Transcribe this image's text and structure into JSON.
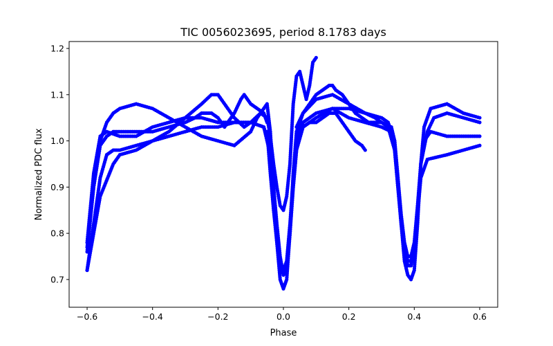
{
  "chart_data": {
    "type": "scatter",
    "title": "TIC 0056023695, period 8.1783 days",
    "xlabel": "Phase",
    "ylabel": "Normalized PDC flux",
    "xlim": [
      -0.655,
      0.655
    ],
    "ylim": [
      0.64,
      1.215
    ],
    "xticks": [
      -0.6,
      -0.4,
      -0.2,
      0.0,
      0.2,
      0.4,
      0.6
    ],
    "xtick_labels": [
      "−0.6",
      "−0.4",
      "−0.2",
      "0.0",
      "0.2",
      "0.4",
      "0.6"
    ],
    "yticks": [
      0.7,
      0.8,
      0.9,
      1.0,
      1.1,
      1.2
    ],
    "ytick_labels": [
      "0.7",
      "0.8",
      "0.9",
      "1.0",
      "1.1",
      "1.2"
    ],
    "grid": false,
    "marker_color": "#0000ff",
    "series": [
      {
        "x": [
          -0.6,
          -0.58,
          -0.56,
          -0.54,
          -0.5,
          -0.45,
          -0.4,
          -0.35,
          -0.3,
          -0.25,
          -0.2,
          -0.15,
          -0.1,
          -0.06,
          -0.04,
          -0.03,
          -0.02,
          -0.01,
          0.0,
          0.01,
          0.02,
          0.03,
          0.04,
          0.06,
          0.1,
          0.15,
          0.2,
          0.25,
          0.3,
          0.33,
          0.34,
          0.35,
          0.36,
          0.37,
          0.38,
          0.39,
          0.4,
          0.41,
          0.42,
          0.43,
          0.45,
          0.5,
          0.55,
          0.6
        ],
        "y": [
          0.78,
          0.93,
          1.01,
          1.02,
          1.01,
          1.01,
          1.03,
          1.04,
          1.05,
          1.05,
          1.04,
          1.04,
          1.04,
          1.03,
          0.98,
          0.9,
          0.82,
          0.75,
          0.71,
          0.72,
          0.8,
          0.9,
          0.98,
          1.03,
          1.05,
          1.07,
          1.05,
          1.04,
          1.03,
          1.02,
          0.98,
          0.9,
          0.82,
          0.76,
          0.73,
          0.73,
          0.77,
          0.85,
          0.95,
          1.0,
          1.02,
          1.01,
          1.01,
          1.01
        ]
      },
      {
        "x": [
          -0.6,
          -0.58,
          -0.56,
          -0.54,
          -0.52,
          -0.5,
          -0.45,
          -0.4,
          -0.35,
          -0.3,
          -0.25,
          -0.2,
          -0.15,
          -0.1,
          -0.08,
          -0.06,
          -0.05,
          -0.04,
          -0.03,
          -0.02,
          -0.01,
          0.0,
          0.01,
          0.02,
          0.03,
          0.04,
          0.06,
          0.1,
          0.15,
          0.2,
          0.25,
          0.3,
          0.32,
          0.34,
          0.35,
          0.36,
          0.37,
          0.38,
          0.39,
          0.4,
          0.41,
          0.42,
          0.43,
          0.45,
          0.5,
          0.55,
          0.6
        ],
        "y": [
          0.76,
          0.9,
          1.0,
          1.04,
          1.06,
          1.07,
          1.08,
          1.07,
          1.05,
          1.03,
          1.01,
          1.0,
          0.99,
          1.02,
          1.05,
          1.07,
          1.08,
          1.02,
          0.9,
          0.78,
          0.7,
          0.68,
          0.7,
          0.8,
          0.93,
          1.02,
          1.06,
          1.09,
          1.1,
          1.08,
          1.06,
          1.05,
          1.04,
          1.0,
          0.92,
          0.82,
          0.74,
          0.71,
          0.7,
          0.72,
          0.82,
          0.95,
          1.03,
          1.07,
          1.08,
          1.06,
          1.05
        ]
      },
      {
        "x": [
          -0.6,
          -0.58,
          -0.56,
          -0.54,
          -0.52,
          -0.5,
          -0.45,
          -0.4,
          -0.35,
          -0.3,
          -0.25,
          -0.22,
          -0.2,
          -0.18,
          -0.15,
          -0.12,
          -0.1,
          -0.07,
          -0.05,
          -0.04,
          -0.03,
          -0.02,
          -0.01,
          0.0,
          0.01,
          0.02,
          0.03,
          0.04,
          0.05,
          0.06,
          0.07,
          0.08,
          0.09,
          0.1
        ],
        "y": [
          0.72,
          0.82,
          0.92,
          0.97,
          0.98,
          0.98,
          0.99,
          1.0,
          1.02,
          1.05,
          1.08,
          1.1,
          1.1,
          1.08,
          1.05,
          1.03,
          1.04,
          1.06,
          1.05,
          1.01,
          0.95,
          0.9,
          0.86,
          0.85,
          0.88,
          0.95,
          1.08,
          1.14,
          1.15,
          1.12,
          1.09,
          1.12,
          1.17,
          1.18
        ]
      },
      {
        "x": [
          -0.6,
          -0.58,
          -0.56,
          -0.55,
          -0.54,
          -0.52,
          -0.5,
          -0.45,
          -0.4,
          -0.35,
          -0.3,
          -0.27,
          -0.25,
          -0.22,
          -0.2,
          -0.18,
          -0.15,
          -0.13,
          -0.12,
          -0.11,
          -0.1,
          -0.08,
          -0.06,
          -0.05
        ],
        "y": [
          0.77,
          0.9,
          0.99,
          1.0,
          1.01,
          1.02,
          1.02,
          1.02,
          1.02,
          1.03,
          1.04,
          1.05,
          1.06,
          1.06,
          1.05,
          1.03,
          1.06,
          1.09,
          1.1,
          1.09,
          1.08,
          1.07,
          1.06,
          1.04
        ]
      },
      {
        "x": [
          -0.6,
          -0.56,
          -0.52,
          -0.5,
          -0.45,
          -0.4,
          -0.35,
          -0.3,
          -0.25,
          -0.2,
          -0.15,
          -0.1,
          -0.06,
          -0.04,
          -0.03,
          -0.02,
          -0.01,
          0.0,
          0.01,
          0.02,
          0.03,
          0.04,
          0.06,
          0.1,
          0.15,
          0.2,
          0.25,
          0.28,
          0.3,
          0.32,
          0.34,
          0.35,
          0.36,
          0.37,
          0.38,
          0.39,
          0.4,
          0.41,
          0.42,
          0.44,
          0.5,
          0.55,
          0.6
        ],
        "y": [
          0.72,
          0.88,
          0.95,
          0.97,
          0.98,
          1.0,
          1.01,
          1.02,
          1.03,
          1.03,
          1.04,
          1.04,
          1.03,
          0.97,
          0.88,
          0.8,
          0.74,
          0.72,
          0.74,
          0.82,
          0.92,
          1.0,
          1.04,
          1.06,
          1.07,
          1.07,
          1.06,
          1.05,
          1.04,
          1.03,
          0.98,
          0.9,
          0.82,
          0.77,
          0.74,
          0.74,
          0.77,
          0.84,
          0.92,
          0.96,
          0.97,
          0.98,
          0.99
        ]
      },
      {
        "x": [
          0.04,
          0.06,
          0.08,
          0.1,
          0.12,
          0.14,
          0.15,
          0.16,
          0.18,
          0.2,
          0.22,
          0.24,
          0.26,
          0.28,
          0.3,
          0.33,
          0.34,
          0.35,
          0.36,
          0.37,
          0.38,
          0.39,
          0.4,
          0.41,
          0.42,
          0.44,
          0.46,
          0.5,
          0.55,
          0.6
        ],
        "y": [
          1.03,
          1.06,
          1.08,
          1.1,
          1.11,
          1.12,
          1.12,
          1.11,
          1.1,
          1.08,
          1.06,
          1.05,
          1.04,
          1.04,
          1.04,
          1.03,
          1.0,
          0.92,
          0.84,
          0.78,
          0.75,
          0.75,
          0.78,
          0.86,
          0.95,
          1.02,
          1.05,
          1.06,
          1.05,
          1.04
        ]
      },
      {
        "x": [
          -0.05,
          -0.04,
          -0.03,
          -0.02,
          -0.01,
          0.0,
          0.01,
          0.02,
          0.03,
          0.04,
          0.05,
          0.06,
          0.08,
          0.1,
          0.12,
          0.14,
          0.16,
          0.18,
          0.2,
          0.22,
          0.24,
          0.25
        ],
        "y": [
          1.02,
          0.93,
          0.85,
          0.78,
          0.73,
          0.71,
          0.73,
          0.8,
          0.9,
          0.98,
          1.02,
          1.03,
          1.04,
          1.04,
          1.05,
          1.06,
          1.06,
          1.04,
          1.02,
          1.0,
          0.99,
          0.98
        ]
      }
    ]
  }
}
